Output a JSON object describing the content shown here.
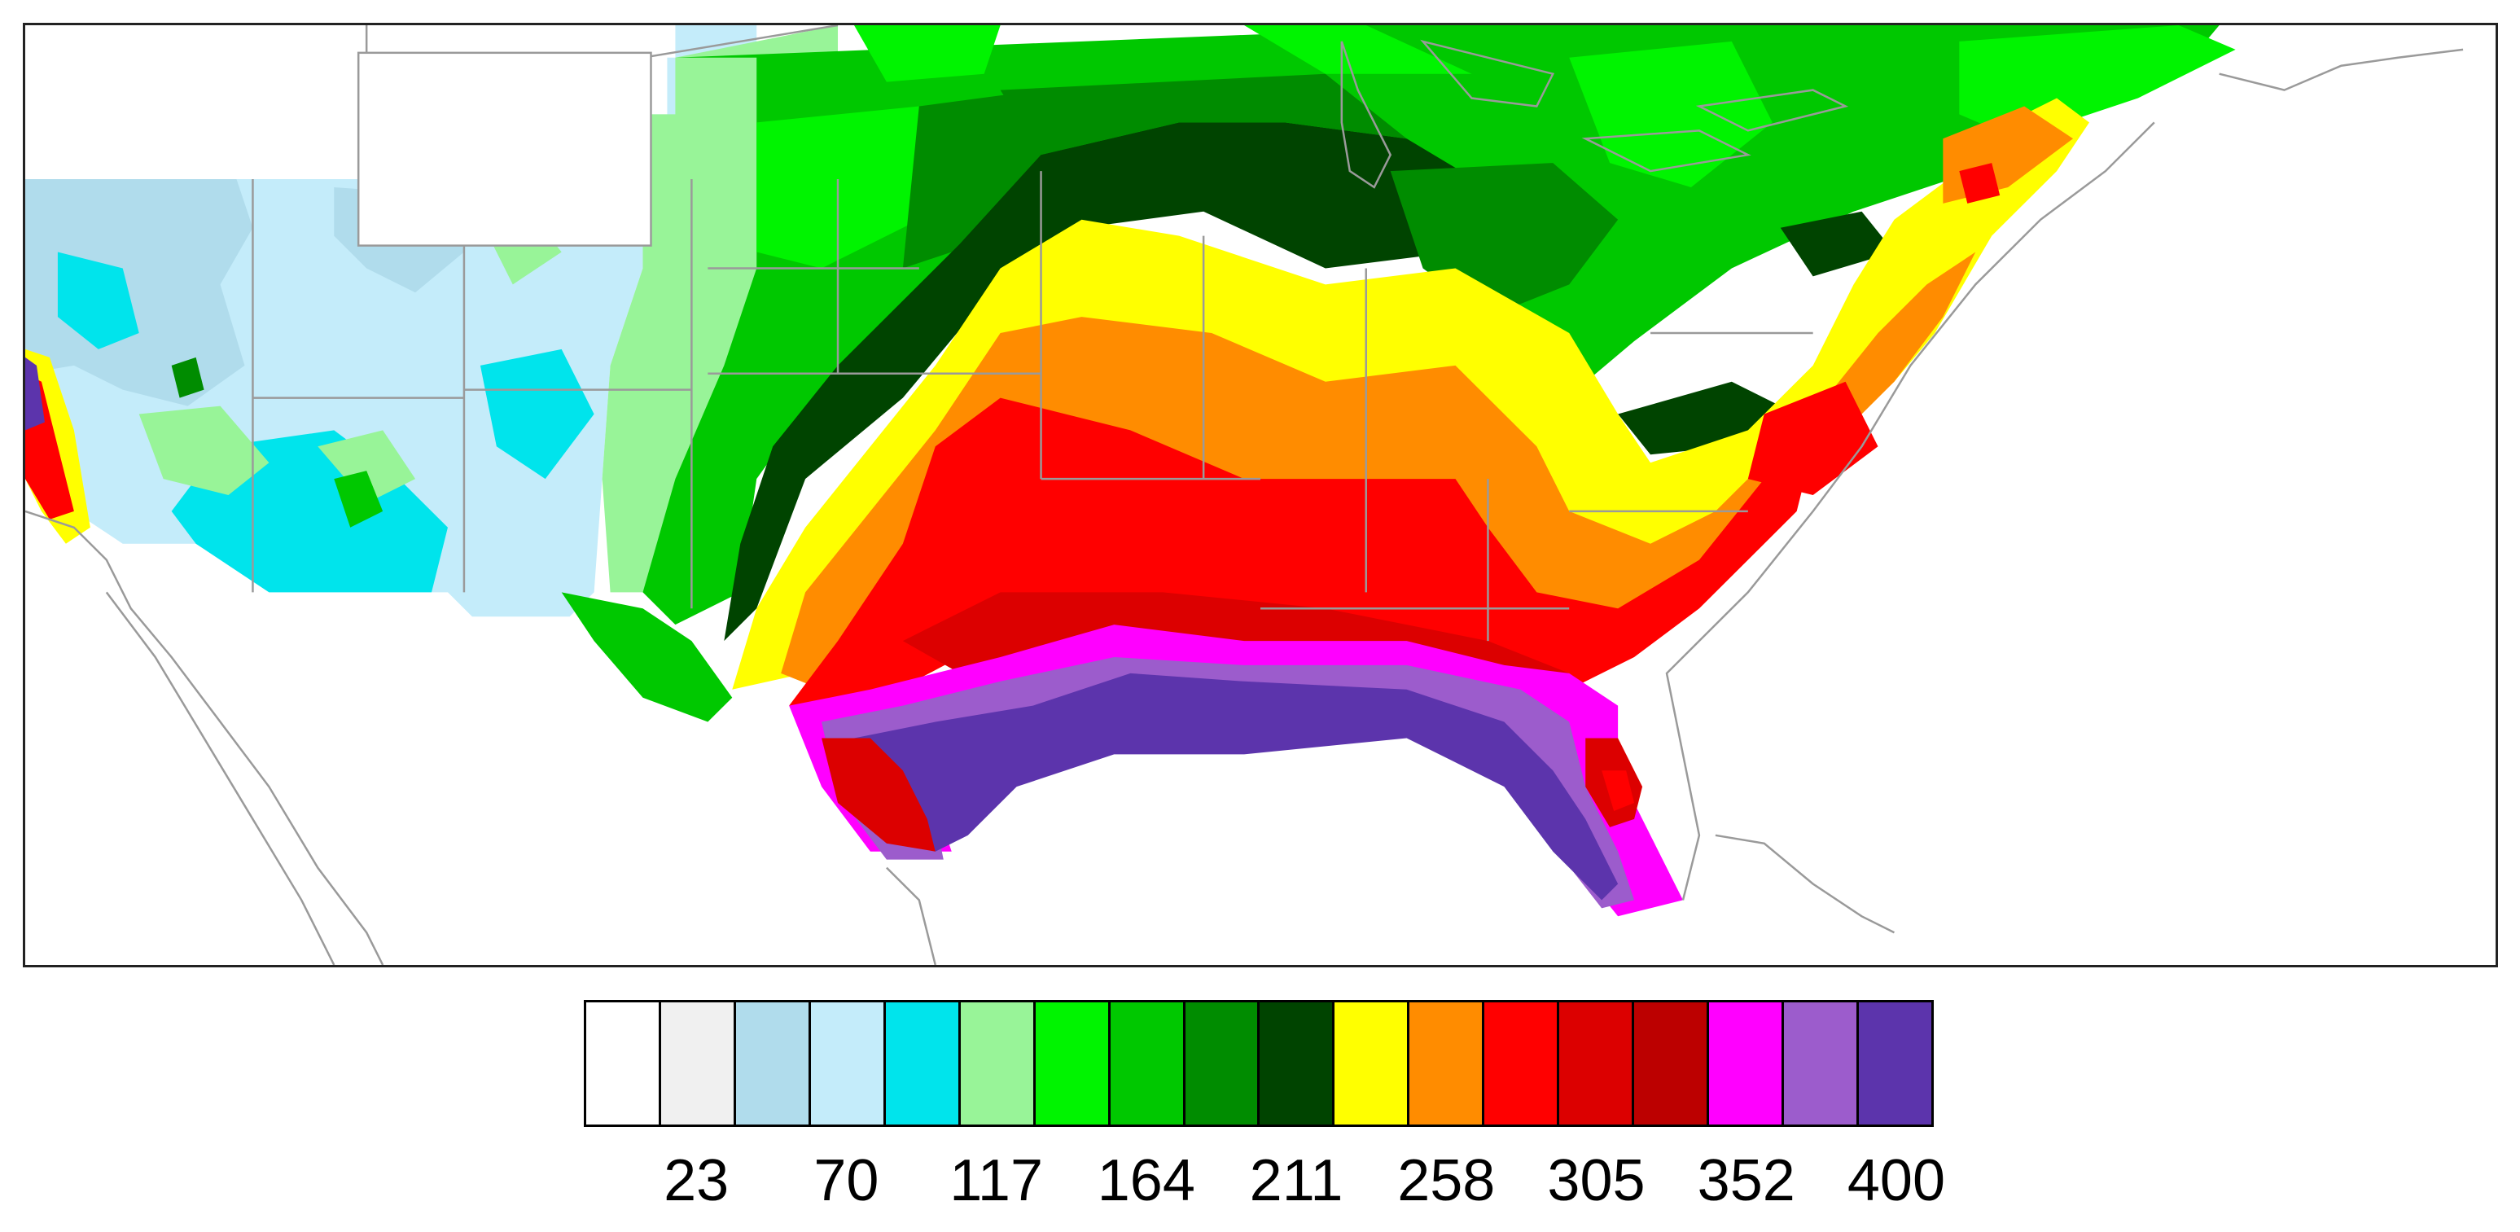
{
  "map": {
    "region": "contiguous-united-states-east-of-rockies",
    "basemap_line_color": "#9a9a9a",
    "border_color": "#222222",
    "field_palette_index_by_zone": {
      "west_plateau": [
        2,
        3,
        4
      ],
      "plains_green": [
        5,
        6,
        7
      ],
      "dark_green_band": [
        9
      ],
      "yellow_band": [
        10
      ],
      "orange_band": [
        11
      ],
      "red_band": [
        12,
        13,
        14
      ],
      "gulf_coast_magenta": [
        15
      ],
      "gulf_coast_purple": [
        16,
        17
      ],
      "northeast_green": [
        6,
        7,
        8
      ]
    }
  },
  "colorbar": {
    "colors": [
      "#ffffff",
      "#f0f0f0",
      "#b0dcec",
      "#c4ecfa",
      "#00e4ec",
      "#98f498",
      "#00f400",
      "#00c800",
      "#008c00",
      "#004400",
      "#ffff00",
      "#ff8c00",
      "#ff0000",
      "#dc0000",
      "#bc0000",
      "#ff00ff",
      "#9c5ccc",
      "#5c34ac"
    ],
    "labels": [
      "23",
      "70",
      "117",
      "164",
      "211",
      "258",
      "305",
      "352",
      "400"
    ],
    "label_after_swatch": [
      2,
      4,
      6,
      8,
      10,
      12,
      14,
      16,
      18
    ]
  }
}
